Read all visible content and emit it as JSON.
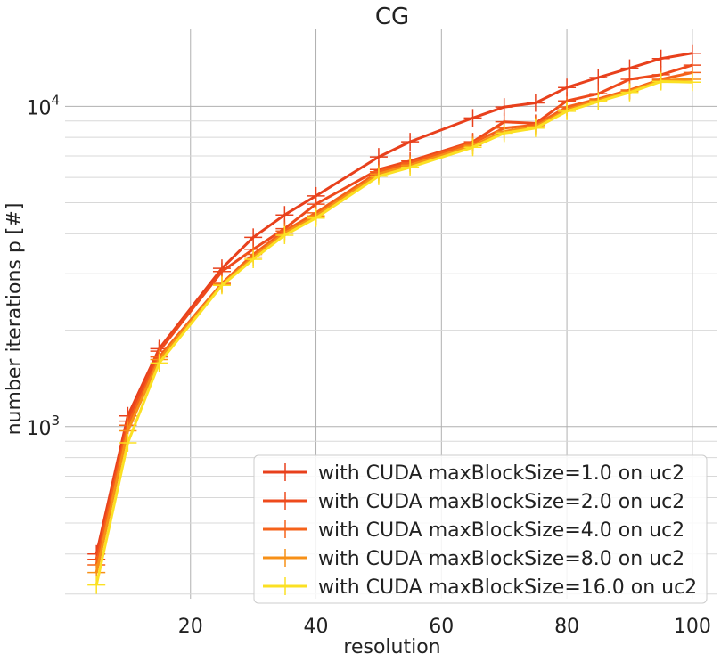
{
  "chart_data": {
    "type": "line",
    "title": "CG",
    "xlabel": "resolution",
    "ylabel": "number iterations p [#]",
    "xscale": "linear",
    "yscale": "log",
    "xlim": [
      0,
      104
    ],
    "ylim": [
      290,
      17500
    ],
    "xticks": [
      20,
      40,
      60,
      80,
      100
    ],
    "xtick_labels": [
      "20",
      "40",
      "60",
      "80",
      "100"
    ],
    "yticks_major": [
      1000,
      10000
    ],
    "ytick_labels": [
      {
        "base": "10",
        "exp": "3"
      },
      {
        "base": "10",
        "exp": "4"
      }
    ],
    "grid": true,
    "legend_position": "bottom-right",
    "marker": "+",
    "x": [
      5,
      10,
      15,
      25,
      30,
      35,
      40,
      50,
      55,
      65,
      70,
      75,
      80,
      85,
      90,
      95,
      100
    ],
    "series": [
      {
        "name": "with CUDA maxBlockSize=1.0 on uc2",
        "color": "#e8401c",
        "values": [
          400,
          1080,
          1750,
          3120,
          3900,
          4580,
          5250,
          6950,
          7750,
          9200,
          9950,
          10250,
          11450,
          12300,
          13150,
          14100,
          14650
        ]
      },
      {
        "name": "with CUDA maxBlockSize=2.0 on uc2",
        "color": "#ee4a1c",
        "values": [
          385,
          1040,
          1720,
          3050,
          3580,
          4150,
          4950,
          6350,
          6750,
          7750,
          8950,
          8850,
          10400,
          10950,
          12150,
          12550,
          13450
        ]
      },
      {
        "name": "with CUDA maxBlockSize=4.0 on uc2",
        "color": "#f5621a",
        "values": [
          370,
          1010,
          1650,
          2800,
          3450,
          4080,
          4650,
          6250,
          6650,
          7700,
          8550,
          8750,
          9950,
          10550,
          11250,
          12150,
          12750
        ]
      },
      {
        "name": "with CUDA maxBlockSize=8.0 on uc2",
        "color": "#f79017",
        "values": [
          350,
          970,
          1620,
          2780,
          3380,
          4020,
          4550,
          6150,
          6550,
          7550,
          8350,
          8650,
          9750,
          10450,
          11150,
          12050,
          12150
        ]
      },
      {
        "name": "with CUDA maxBlockSize=16.0 on uc2",
        "color": "#fbe023",
        "values": [
          320,
          890,
          1580,
          2760,
          3330,
          3960,
          4480,
          6050,
          6450,
          7450,
          8250,
          8550,
          9650,
          10350,
          11050,
          11950,
          11900
        ]
      }
    ]
  }
}
